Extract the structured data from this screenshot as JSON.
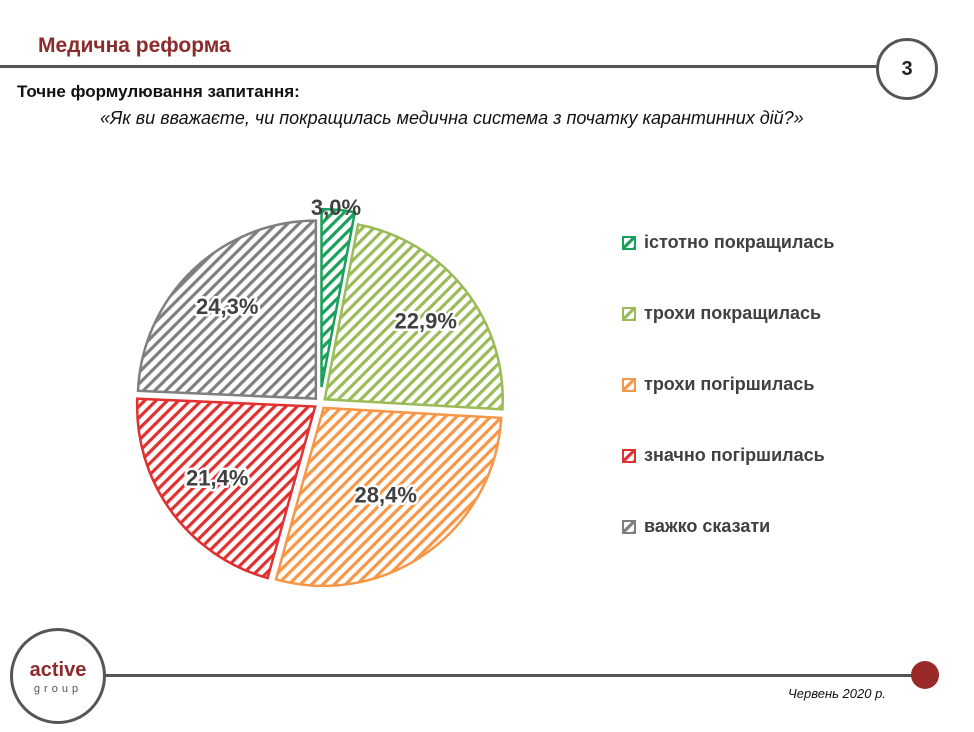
{
  "header": {
    "title": "Медична реформа",
    "page_number": "3"
  },
  "question_label": "Точне формулювання запитання:",
  "question_text": "«Як ви вважаєте, чи покращилась медична система з початку карантинних дій?»",
  "footer": {
    "logo_active": "active",
    "logo_group": "group",
    "date": "Червень 2020 р."
  },
  "chart_data": {
    "type": "pie",
    "slices": [
      {
        "label": "істотно покращилась",
        "value": 3.0,
        "display": "3,0%",
        "color": "#1aa05a"
      },
      {
        "label": "трохи покращилась",
        "value": 22.9,
        "display": "22,9%",
        "color": "#9bbb59"
      },
      {
        "label": "трохи погіршилась",
        "value": 28.4,
        "display": "28,4%",
        "color": "#f79646"
      },
      {
        "label": "значно погіршилась",
        "value": 21.4,
        "display": "21,4%",
        "color": "#e03030"
      },
      {
        "label": "важко сказати",
        "value": 24.3,
        "display": "24,3%",
        "color": "#7f7f7f"
      }
    ],
    "legend_position": "right",
    "fill_style": "diagonal-hatch"
  }
}
